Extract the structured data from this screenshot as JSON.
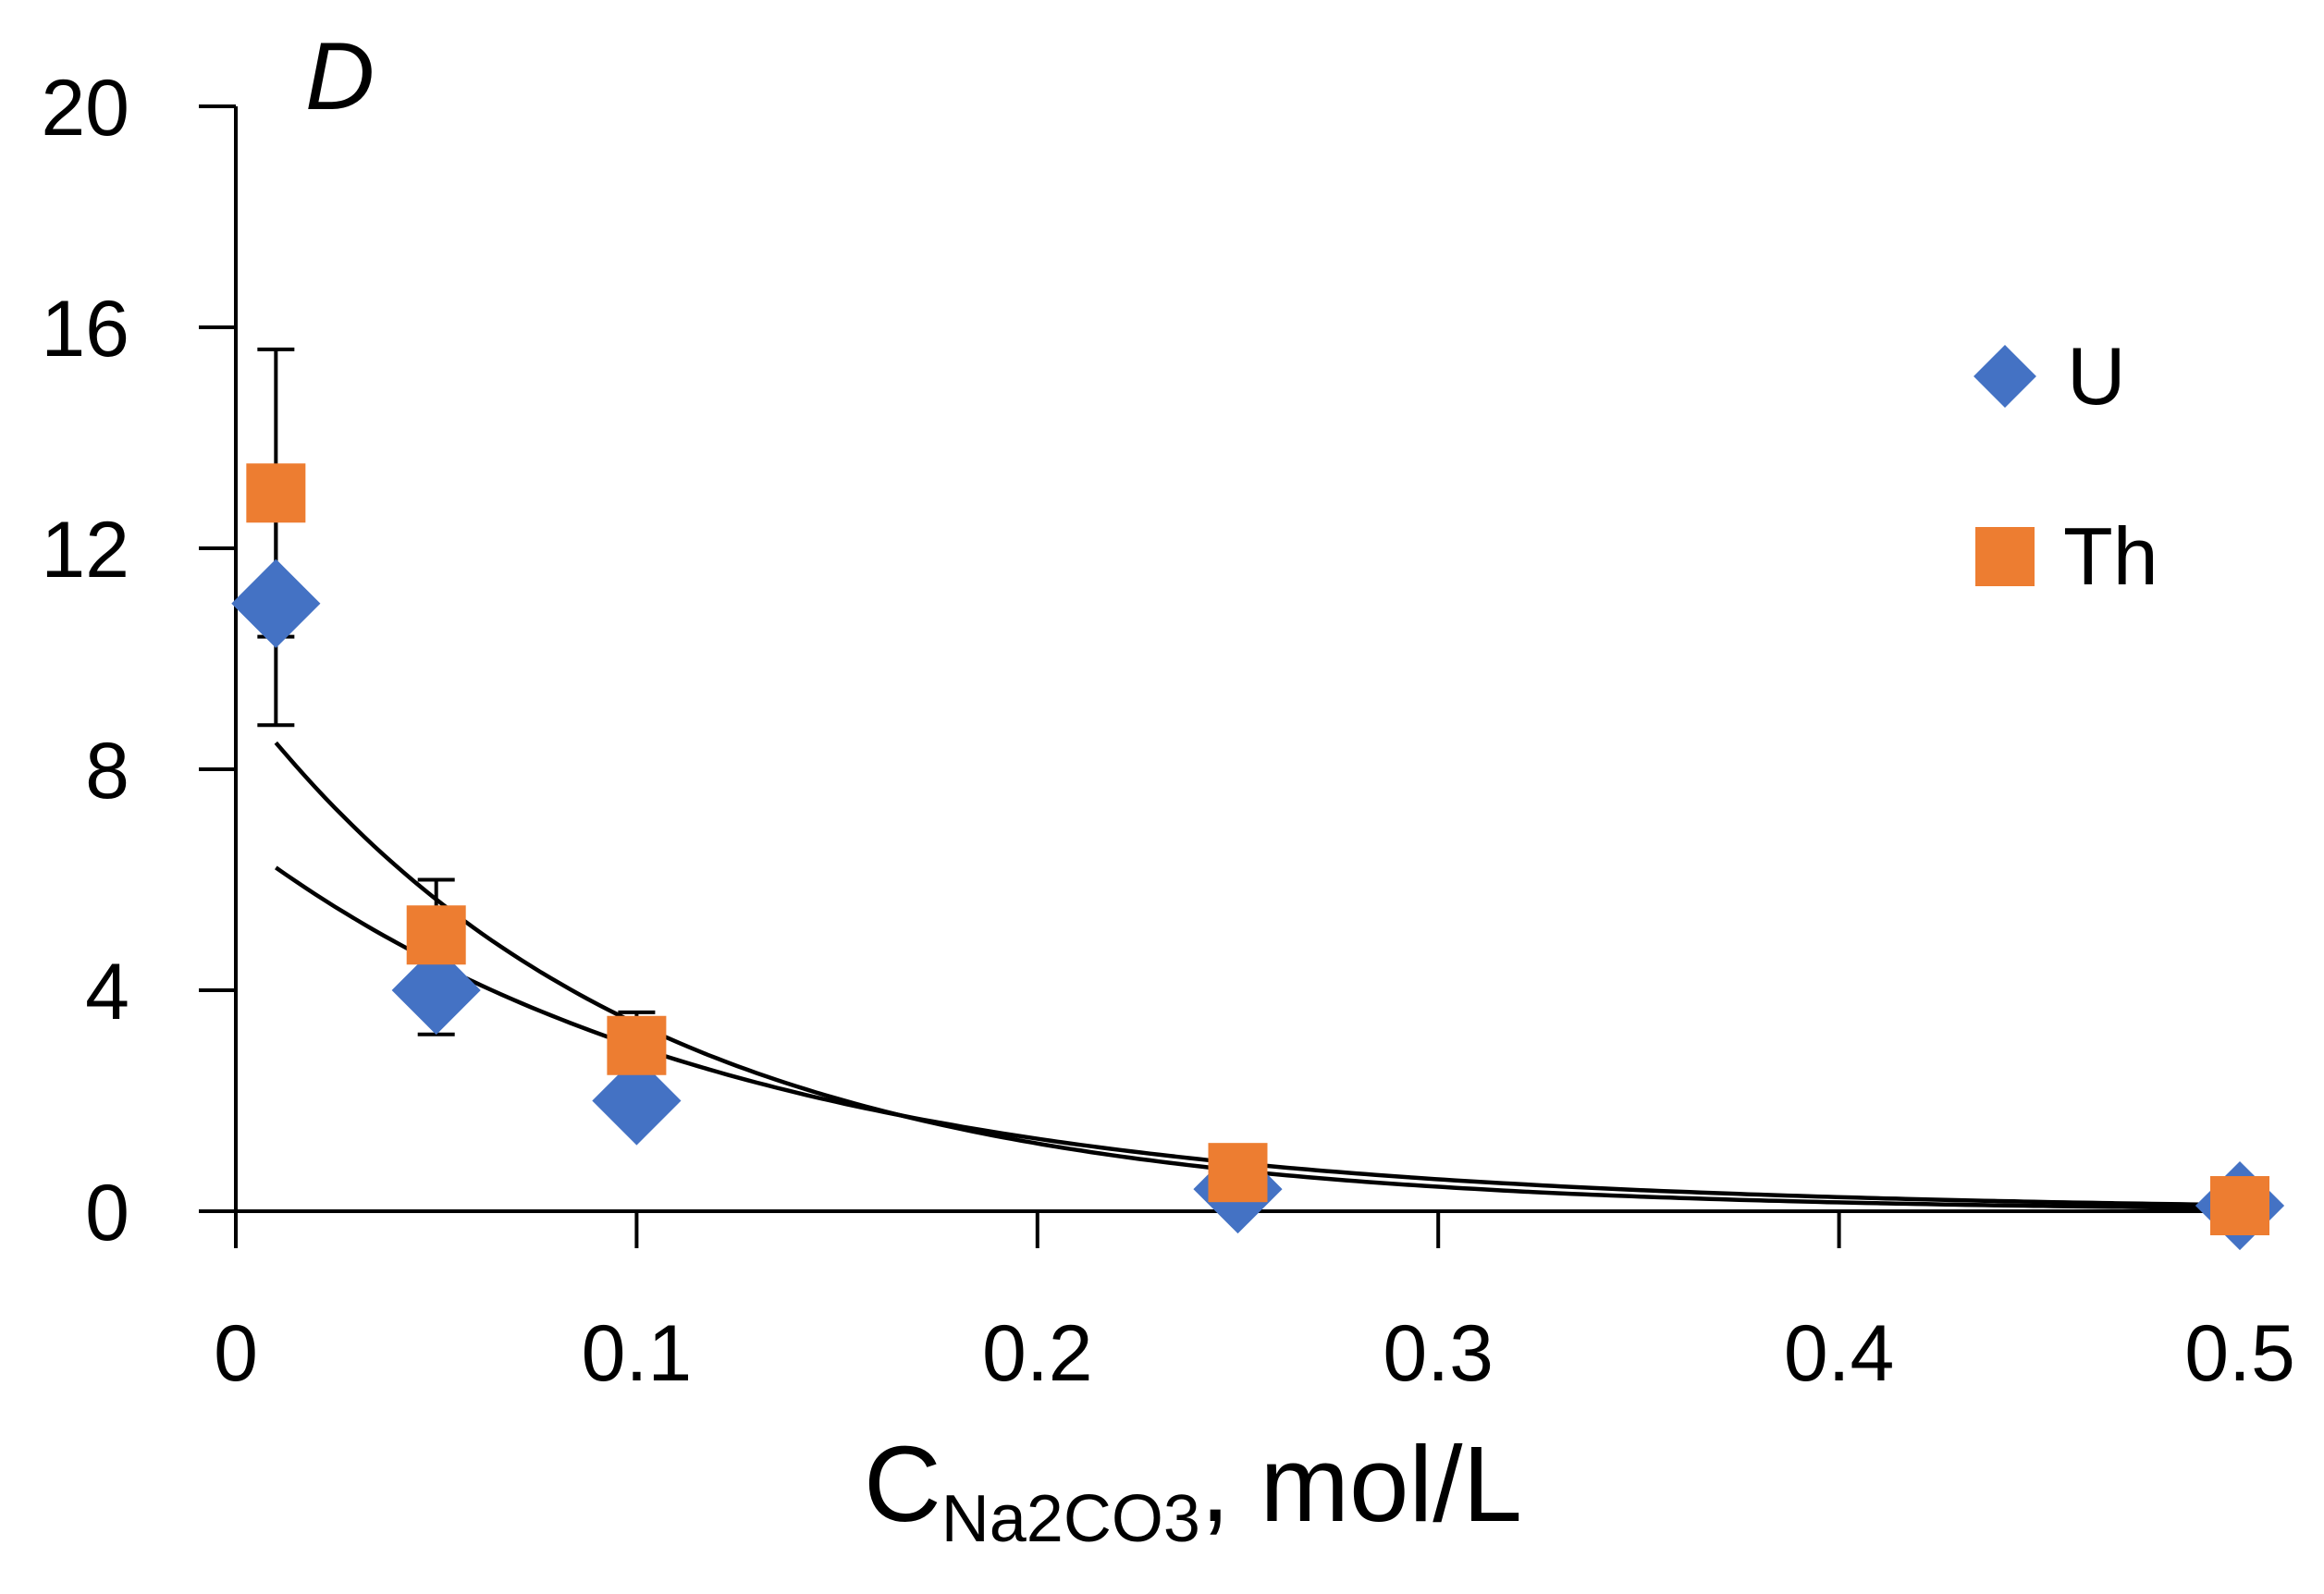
{
  "chart_data": {
    "type": "scatter",
    "title": "",
    "ylabel": "D",
    "xlabel": {
      "main": "C",
      "sub": "Na2CO3",
      "suffix": ", mol/L"
    },
    "xlim": [
      0,
      0.5
    ],
    "ylim": [
      0,
      20
    ],
    "x_ticks": [
      0,
      0.1,
      0.2,
      0.3,
      0.4,
      0.5
    ],
    "x_tick_labels": [
      "0",
      "0.1",
      "0.2",
      "0.3",
      "0.4",
      "0.5"
    ],
    "y_ticks": [
      0,
      4,
      8,
      12,
      16,
      20
    ],
    "y_tick_labels": [
      "0",
      "4",
      "8",
      "12",
      "16",
      "20"
    ],
    "grid": false,
    "legend_position": "top-right",
    "series": [
      {
        "name": "U",
        "marker": "diamond",
        "color": "#4472C4",
        "points": [
          {
            "x": 0.01,
            "y": 11.0,
            "err": 2.2
          },
          {
            "x": 0.05,
            "y": 4.0,
            "err": 0.8
          },
          {
            "x": 0.1,
            "y": 2.0,
            "err": 0.4
          },
          {
            "x": 0.25,
            "y": 0.4,
            "err": 0.0
          },
          {
            "x": 0.5,
            "y": 0.1,
            "err": 0.0
          }
        ],
        "fit": {
          "type": "exponential",
          "a": 6.75,
          "b": -8.19
        }
      },
      {
        "name": "Th",
        "marker": "square",
        "color": "#ED7D31",
        "points": [
          {
            "x": 0.01,
            "y": 13.0,
            "err": 2.6
          },
          {
            "x": 0.05,
            "y": 5.0,
            "err": 1.0
          },
          {
            "x": 0.1,
            "y": 3.0,
            "err": 0.6
          },
          {
            "x": 0.25,
            "y": 0.7,
            "err": 0.0
          },
          {
            "x": 0.5,
            "y": 0.1,
            "err": 0.0
          }
        ],
        "fit": {
          "type": "exponential",
          "a": 9.39,
          "b": -10.18
        }
      }
    ]
  }
}
